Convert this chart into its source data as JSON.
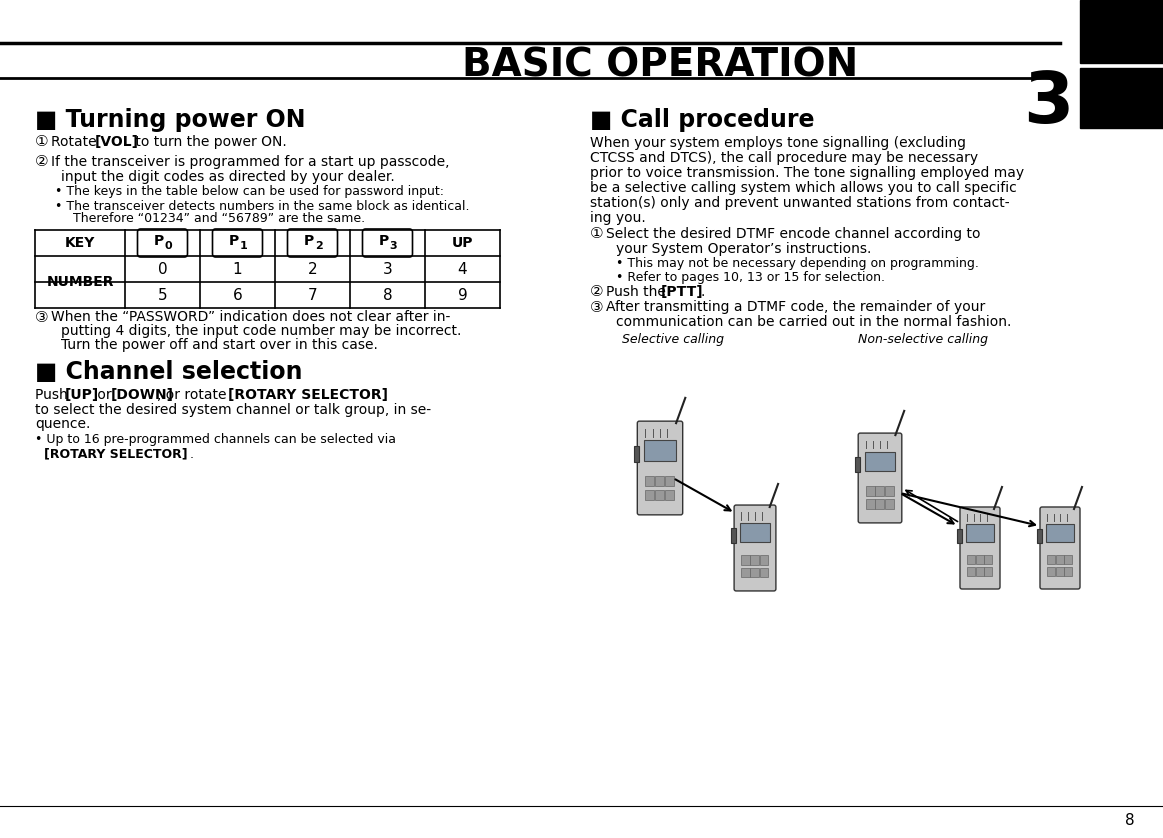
{
  "title": "BASIC OPERATION",
  "chapter_num": "3",
  "bg_color": "#ffffff",
  "text_color": "#000000",
  "page_num": "8",
  "section1_title": "■ Turning power ON",
  "section2_title": "■ Channel selection",
  "section3_title": "■ Call procedure",
  "table_keys": [
    "KEY",
    "P0",
    "P1",
    "P2",
    "P3",
    "UP"
  ],
  "table_numbers_top": [
    "",
    "0",
    "1",
    "2",
    "3",
    "4"
  ],
  "table_numbers_bot": [
    "NUMBER",
    "5",
    "6",
    "7",
    "8",
    "9"
  ],
  "sel_calling_label": "Selective calling",
  "non_sel_calling_label": "Non-selective calling",
  "circ1": "①",
  "circ2": "②",
  "circ3": "③",
  "bullet": "•",
  "ldquo": "“",
  "rdquo": "”",
  "rsquo": "’"
}
